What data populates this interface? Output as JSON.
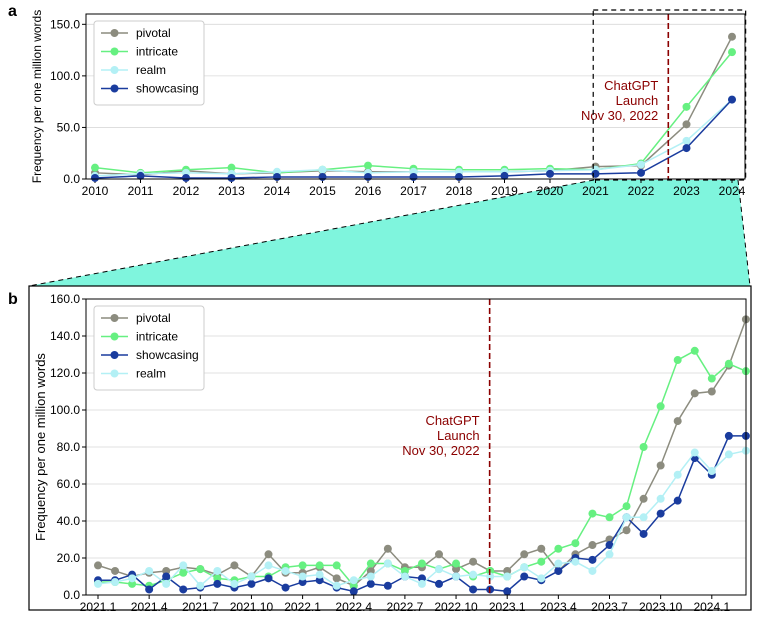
{
  "panel_labels": {
    "a": "a",
    "b": "b"
  },
  "colors": {
    "pivotal": "#8c8c7f",
    "intricate": "#66f081",
    "realm": "#b3f0f5",
    "showcasing": "#1a3c9e",
    "launch_line": "#8b0000",
    "zoom_fill": "#7ff5dd"
  },
  "chart_data": [
    {
      "type": "line",
      "panel": "a",
      "ylabel": "Frequency per one million words",
      "xlabel": "",
      "x": [
        "2010",
        "2011",
        "2012",
        "2013",
        "2014",
        "2015",
        "2016",
        "2017",
        "2018",
        "2019",
        "2020",
        "2021",
        "2022",
        "2023",
        "2024"
      ],
      "ylim": [
        0,
        160
      ],
      "yticks": [
        "0.0",
        "50.0",
        "100.0",
        "150.0"
      ],
      "yticks_values": [
        0,
        50,
        100,
        150
      ],
      "grid": "horizontal",
      "legend_position": "top-left",
      "annotation": {
        "lines": [
          "ChatGPT",
          "Launch",
          "Nov 30, 2022"
        ],
        "at_x": 2022.6
      },
      "zoom_box": {
        "x_from": 2020.95,
        "x_to": 2024.3
      },
      "series": [
        {
          "name": "pivotal",
          "values": [
            6,
            4,
            8,
            5,
            6,
            8,
            7,
            7,
            7,
            7,
            8,
            12,
            13,
            53,
            138
          ]
        },
        {
          "name": "intricate",
          "values": [
            11,
            6,
            9,
            11,
            6,
            9,
            13,
            10,
            9,
            9,
            10,
            9,
            15,
            70,
            123
          ]
        },
        {
          "name": "realm",
          "values": [
            3,
            5,
            6,
            5,
            7,
            9,
            6,
            7,
            7,
            7,
            8,
            9,
            14,
            37,
            77
          ]
        },
        {
          "name": "showcasing",
          "values": [
            1,
            3,
            1,
            1,
            2,
            2,
            2,
            2,
            2,
            3,
            5,
            5,
            6,
            30,
            77
          ]
        }
      ]
    },
    {
      "type": "line",
      "panel": "b",
      "ylabel": "Frequency per one million words",
      "xlabel": "",
      "x_count": 39,
      "xtick_labels": [
        "2021.1",
        "2021.4",
        "2021.7",
        "2021.10",
        "2022.1",
        "2022.4",
        "2022.7",
        "2022.10",
        "2023.1",
        "2023.4",
        "2023.7",
        "2023.10",
        "2024.1"
      ],
      "xtick_positions": [
        0,
        3,
        6,
        9,
        12,
        15,
        18,
        21,
        24,
        27,
        30,
        33,
        36
      ],
      "ylim": [
        0,
        160
      ],
      "yticks": [
        "0.0",
        "20.0",
        "40.0",
        "60.0",
        "80.0",
        "100.0",
        "120.0",
        "140.0",
        "160.0"
      ],
      "yticks_values": [
        0,
        20,
        40,
        60,
        80,
        100,
        120,
        140,
        160
      ],
      "grid": "horizontal",
      "legend_position": "top-left",
      "annotation": {
        "lines": [
          "ChatGPT",
          "Launch",
          "Nov 30, 2022"
        ],
        "at_x": 22.97
      },
      "series": [
        {
          "name": "pivotal",
          "values": [
            16,
            13,
            10,
            12,
            13,
            15,
            14,
            11,
            16,
            10,
            22,
            12,
            12,
            15,
            9,
            5,
            13,
            25,
            15,
            15,
            22,
            14,
            18,
            13,
            13,
            22,
            25,
            13,
            22,
            27,
            30,
            35,
            52,
            70,
            94,
            109,
            110,
            124,
            149
          ]
        },
        {
          "name": "intricate",
          "values": [
            7,
            7,
            6,
            5,
            8,
            12,
            14,
            9,
            8,
            10,
            10,
            15,
            16,
            16,
            16,
            5,
            17,
            17,
            13,
            17,
            14,
            17,
            10,
            13,
            10,
            15,
            18,
            25,
            28,
            44,
            42,
            48,
            80,
            102,
            127,
            132,
            117,
            125,
            121
          ]
        },
        {
          "name": "showcasing",
          "values": [
            8,
            8,
            11,
            3,
            10,
            3,
            4,
            6,
            4,
            6,
            9,
            4,
            7,
            8,
            4,
            2,
            6,
            5,
            10,
            9,
            6,
            10,
            3,
            3,
            2,
            10,
            8,
            13,
            20,
            19,
            27,
            42,
            33,
            44,
            51,
            74,
            65,
            86,
            86
          ]
        },
        {
          "name": "realm",
          "values": [
            6,
            7,
            9,
            13,
            6,
            16,
            5,
            13,
            6,
            10,
            16,
            13,
            10,
            11,
            5,
            8,
            10,
            17,
            10,
            6,
            14,
            10,
            11,
            10,
            10,
            15,
            9,
            17,
            18,
            13,
            22,
            42,
            42,
            52,
            65,
            77,
            67,
            76,
            78
          ]
        }
      ]
    }
  ]
}
